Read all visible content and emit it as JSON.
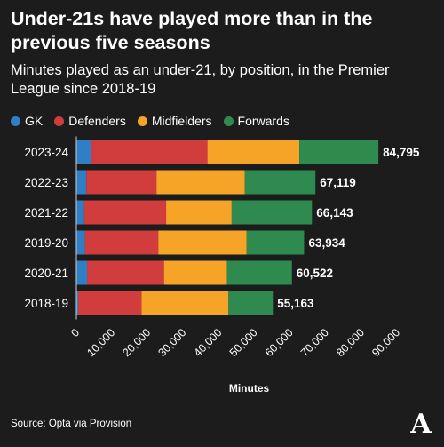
{
  "title": "Under-21s have played more than in the previous five seasons",
  "subtitle": "Minutes played as an under-21, by position, in the Premier League since 2018-19",
  "source": "Source: Opta via Provision",
  "logo_letter": "A",
  "colors": {
    "GK": "#2f7fc6",
    "Defenders": "#d13c3c",
    "Midfielders": "#f5a428",
    "Forwards": "#2e8a4f",
    "background": "#1c1c1c"
  },
  "chart_data": {
    "type": "bar",
    "orientation": "horizontal",
    "stacked": true,
    "title": "Under-21s have played more than in the previous five seasons",
    "subtitle": "Minutes played as an under-21, by position, in the Premier League since 2018-19",
    "xlabel": "Minutes",
    "ylabel": "",
    "xlim": [
      0,
      90000
    ],
    "xticks": [
      0,
      10000,
      20000,
      30000,
      40000,
      50000,
      60000,
      70000,
      80000,
      90000
    ],
    "xtick_labels": [
      "0",
      "10,000",
      "20,000",
      "30,000",
      "40,000",
      "50,000",
      "60,000",
      "70,000",
      "80,000",
      "90,000"
    ],
    "legend_position": "top-left",
    "grid": false,
    "categories": [
      "2023-24",
      "2022-23",
      "2021-22",
      "2019-20",
      "2020-21",
      "2018-19"
    ],
    "totals": [
      84795,
      67119,
      66143,
      63934,
      60522,
      55163
    ],
    "total_labels": [
      "84,795",
      "67,119",
      "66,143",
      "63,934",
      "60,522",
      "55,163"
    ],
    "series": [
      {
        "name": "GK",
        "values": [
          4000,
          2800,
          2200,
          2400,
          3000,
          500
        ]
      },
      {
        "name": "Defenders",
        "values": [
          32800,
          19700,
          23000,
          20600,
          21600,
          17800
        ]
      },
      {
        "name": "Midfielders",
        "values": [
          25800,
          24800,
          18400,
          24800,
          17700,
          24400
        ]
      },
      {
        "name": "Forwards",
        "values": [
          22195,
          19819,
          22543,
          16134,
          18222,
          12463
        ]
      }
    ]
  }
}
